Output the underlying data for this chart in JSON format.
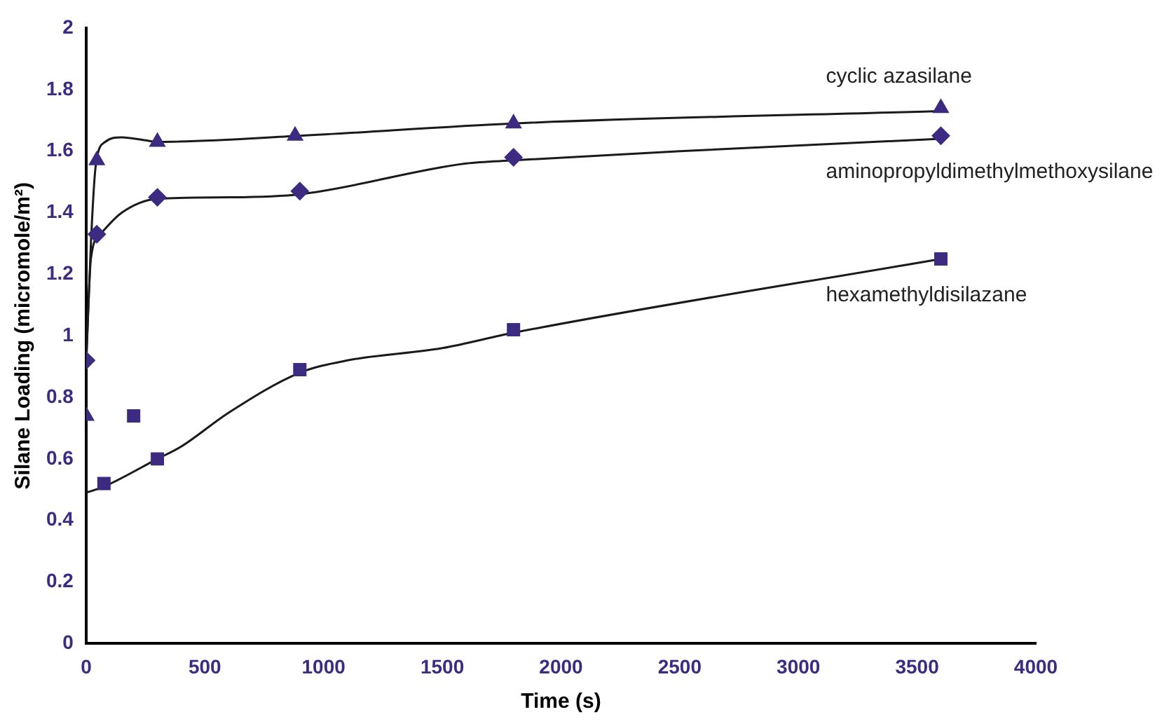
{
  "chart_data": {
    "type": "scatter",
    "xlabel": "Time (s)",
    "ylabel": "Silane Loading (micromole/m²)",
    "xlim": [
      0,
      4000
    ],
    "xticks": [
      0,
      500,
      1000,
      1500,
      2000,
      2500,
      3000,
      3500,
      4000
    ],
    "ylim": [
      0,
      2
    ],
    "yticks": [
      0,
      0.2,
      0.4,
      0.6,
      0.8,
      1,
      1.2,
      1.4,
      1.6,
      1.8,
      2
    ],
    "grid": false,
    "legend": false,
    "series": [
      {
        "name": "cyclic azasilane",
        "type": "scatter",
        "marker": "triangle",
        "color": "#3d2b82",
        "x": [
          0,
          45,
          300,
          880,
          1800,
          3600
        ],
        "values": [
          0.74,
          1.57,
          1.63,
          1.65,
          1.69,
          1.74
        ]
      },
      {
        "name": "aminopropyldimethylmethoxysilane",
        "type": "scatter",
        "marker": "diamond",
        "color": "#3d2b82",
        "x": [
          0,
          45,
          300,
          900,
          1800,
          3600
        ],
        "values": [
          0.92,
          1.33,
          1.45,
          1.47,
          1.58,
          1.65
        ]
      },
      {
        "name": "hexamethyldisilazane",
        "type": "scatter",
        "marker": "square",
        "color": "#3d2b82",
        "x": [
          75,
          200,
          300,
          900,
          1800,
          3600
        ],
        "values": [
          0.52,
          0.74,
          0.6,
          0.89,
          1.02,
          1.25
        ]
      },
      {
        "type": "line",
        "marker": "none",
        "line_style": "solid",
        "color": "#1a1a1a",
        "x": [
          0,
          20,
          40,
          80,
          150,
          250,
          300,
          900,
          1800,
          3600
        ],
        "values": [
          0.9,
          1.3,
          1.55,
          1.63,
          1.645,
          1.635,
          1.63,
          1.65,
          1.69,
          1.73
        ]
      },
      {
        "type": "line",
        "marker": "none",
        "line_style": "solid",
        "color": "#1a1a1a",
        "x": [
          0,
          20,
          60,
          150,
          300,
          600,
          900,
          1600,
          1800,
          2500,
          3600
        ],
        "values": [
          0.92,
          1.25,
          1.33,
          1.4,
          1.445,
          1.45,
          1.46,
          1.56,
          1.57,
          1.6,
          1.64
        ]
      },
      {
        "type": "line",
        "marker": "none",
        "line_style": "solid",
        "color": "#1a1a1a",
        "x": [
          0,
          75,
          300,
          400,
          600,
          900,
          1100,
          1500,
          1800,
          3600
        ],
        "values": [
          0.49,
          0.51,
          0.6,
          0.64,
          0.75,
          0.88,
          0.92,
          0.96,
          1.01,
          1.25
        ]
      }
    ]
  }
}
